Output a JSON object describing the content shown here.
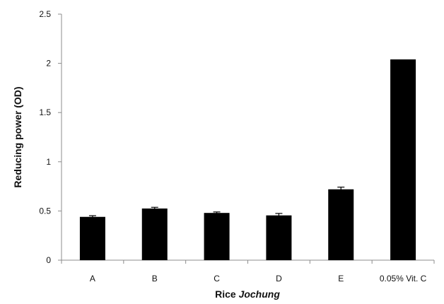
{
  "chart_data": {
    "type": "bar",
    "title": "",
    "categories": [
      "A",
      "B",
      "C",
      "D",
      "E",
      "0.05% Vit. C"
    ],
    "values": [
      0.44,
      0.525,
      0.48,
      0.455,
      0.72,
      2.04
    ],
    "errors": [
      0.012,
      0.012,
      0.01,
      0.02,
      0.022,
      0.0
    ],
    "xlabel": {
      "main": "Rice",
      "italic": "Jochung"
    },
    "ylabel": "Reducing power (OD)",
    "ylim": [
      0,
      2.5
    ],
    "yticks": [
      "0",
      "0.5",
      "1",
      "1.5",
      "2",
      "2.5"
    ],
    "grid": false,
    "legend": "none",
    "colors": {
      "bar": "#000000",
      "axis": "#8c8c8c",
      "text": "#111111"
    }
  }
}
